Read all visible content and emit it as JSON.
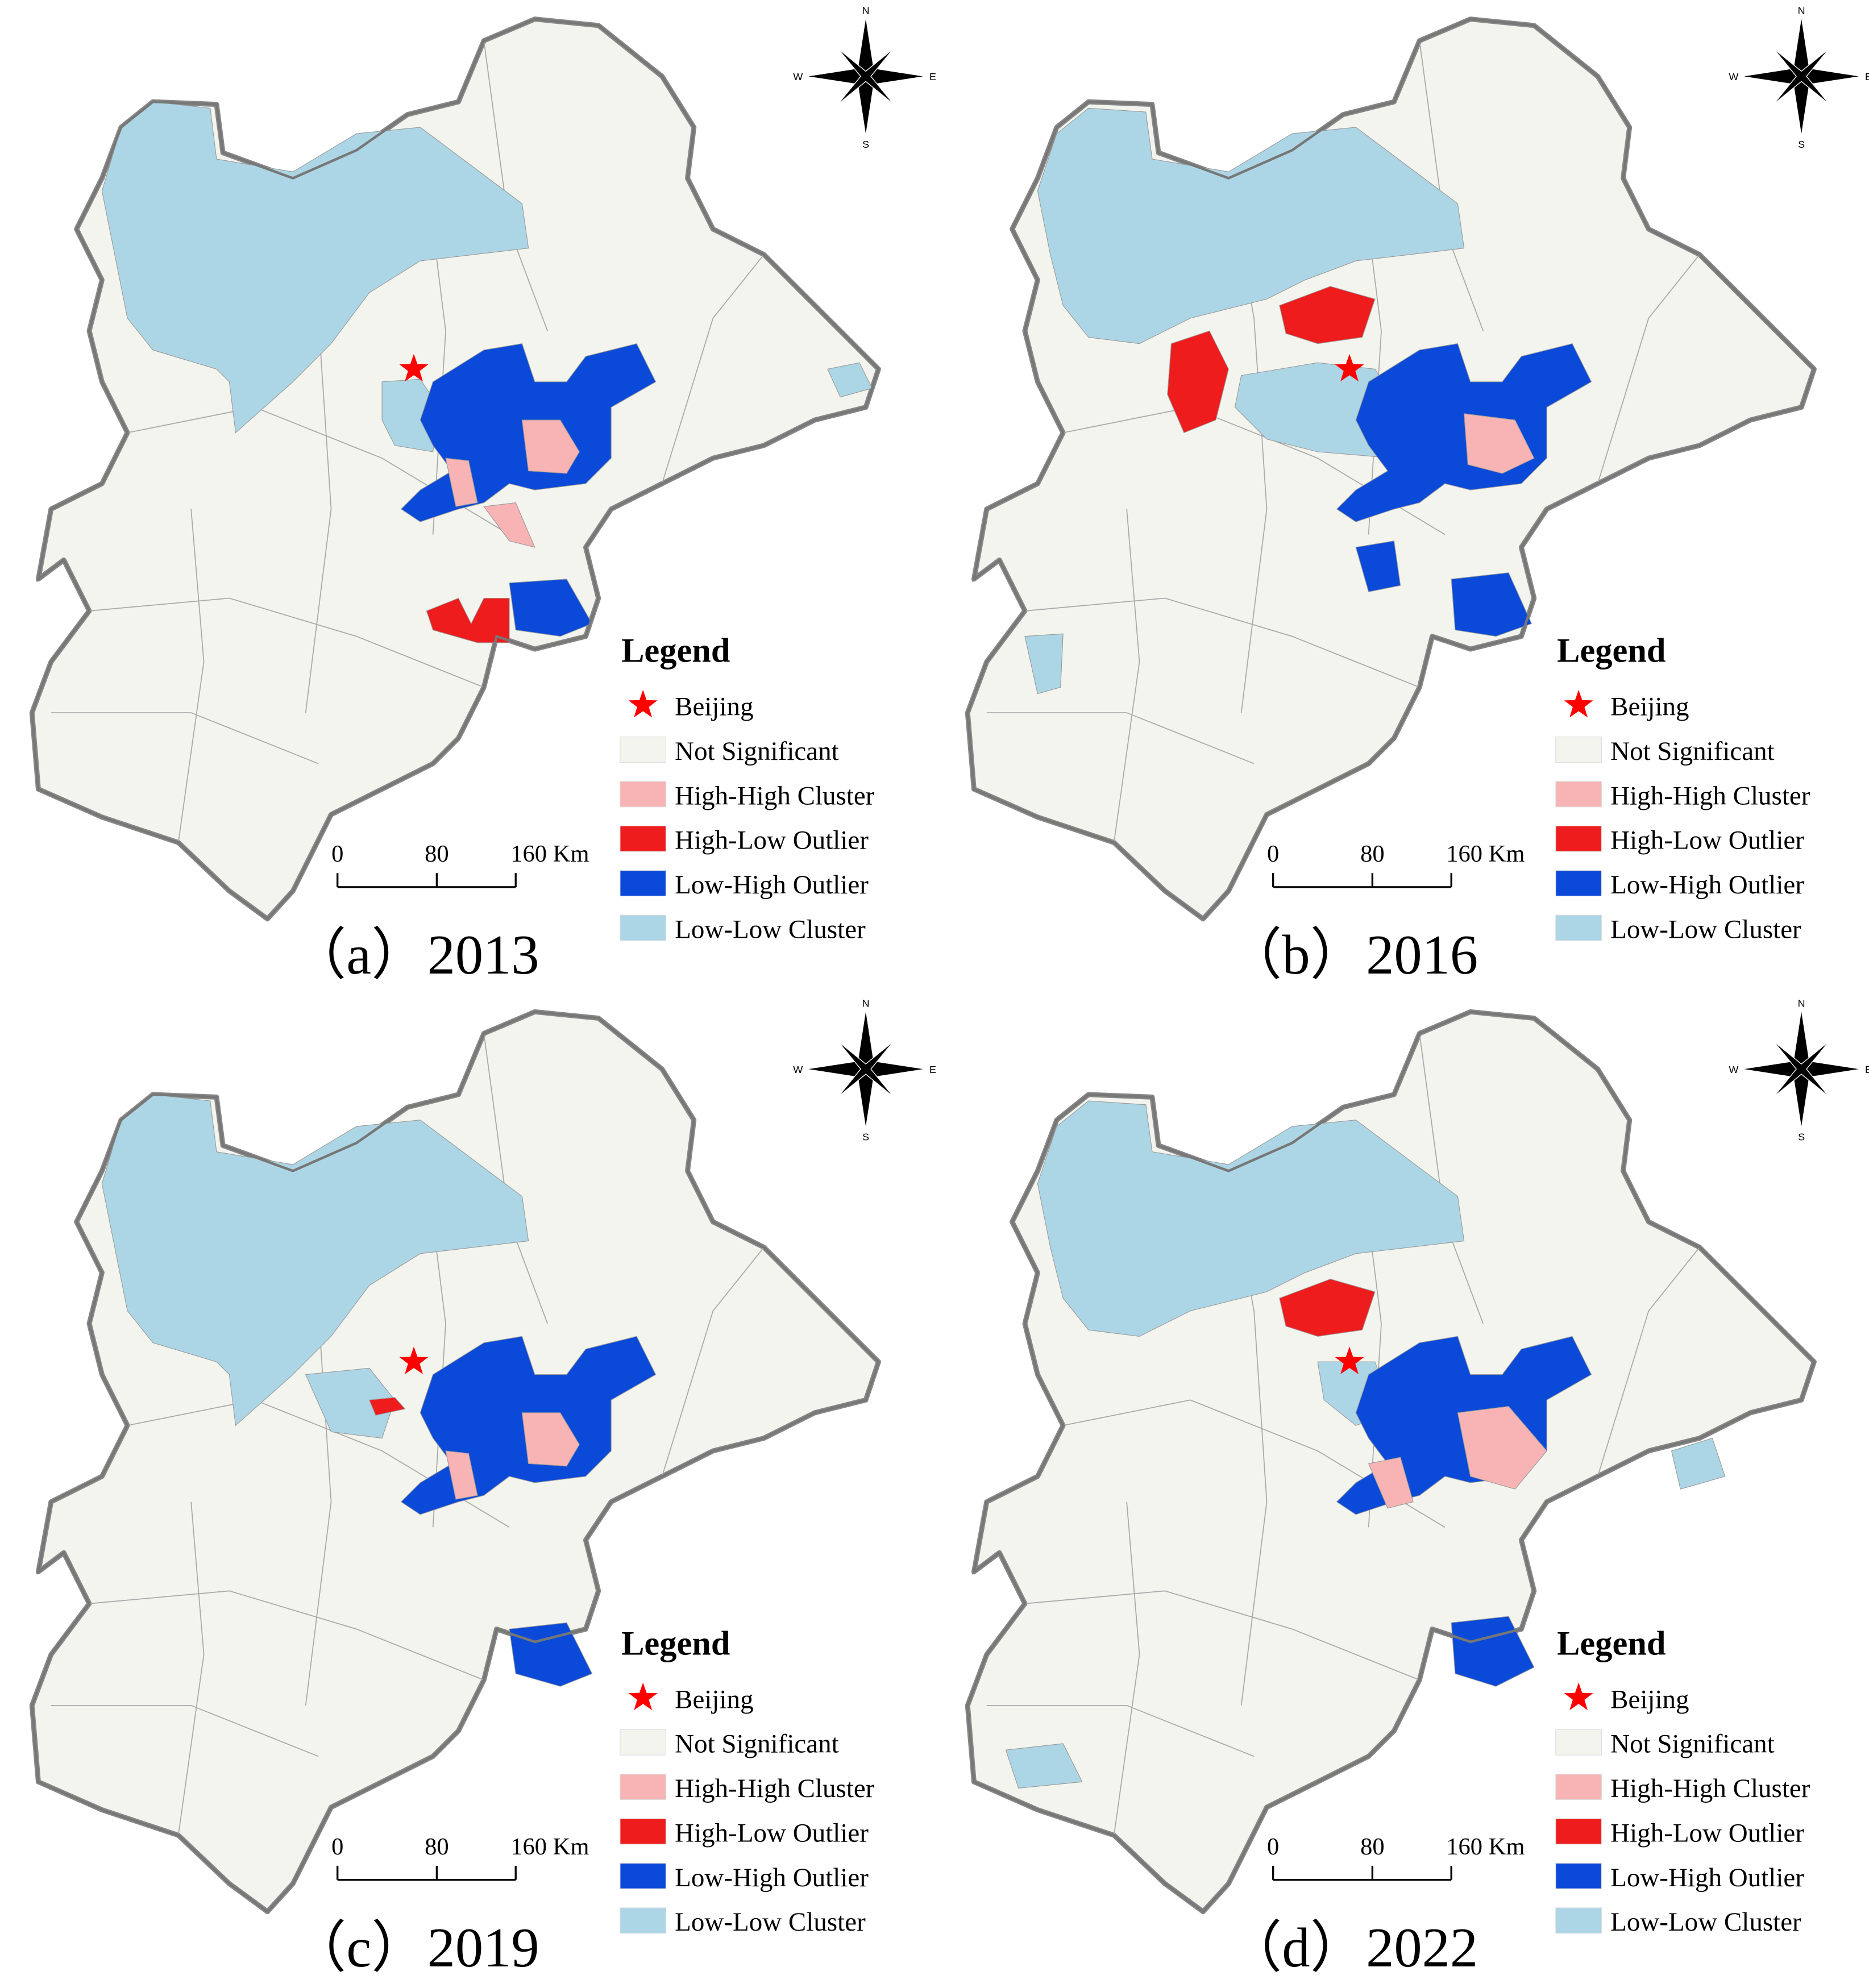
{
  "panels": [
    {
      "caption": "（a）2013",
      "compass": {
        "n": "N",
        "s": "S",
        "e": "E",
        "w": "W"
      },
      "legend": {
        "title": "Legend",
        "items": [
          {
            "label": "Beijing",
            "color": "#ff0000"
          },
          {
            "label": "Not Significant",
            "color": "#f3f4ee"
          },
          {
            "label": "High-High Cluster",
            "color": "#f8b4b4"
          },
          {
            "label": "High-Low Outlier",
            "color": "#ee1c1c"
          },
          {
            "label": "Low-High Outlier",
            "color": "#0b4ad8"
          },
          {
            "label": "Low-Low Cluster",
            "color": "#acd6e6"
          }
        ]
      },
      "scale_bar": {
        "labels": [
          "0",
          "80",
          "160 Km"
        ]
      }
    },
    {
      "caption": "（b）2016",
      "compass": {
        "n": "N",
        "s": "S",
        "e": "E",
        "w": "W"
      },
      "legend": {
        "title": "Legend",
        "items": [
          {
            "label": "Beijing",
            "color": "#ff0000"
          },
          {
            "label": "Not Significant",
            "color": "#f3f4ee"
          },
          {
            "label": "High-High Cluster",
            "color": "#f8b4b4"
          },
          {
            "label": "High-Low Outlier",
            "color": "#ee1c1c"
          },
          {
            "label": "Low-High Outlier",
            "color": "#0b4ad8"
          },
          {
            "label": "Low-Low Cluster",
            "color": "#acd6e6"
          }
        ]
      },
      "scale_bar": {
        "labels": [
          "0",
          "80",
          "160 Km"
        ]
      }
    },
    {
      "caption": "（c）2019",
      "compass": {
        "n": "N",
        "s": "S",
        "e": "E",
        "w": "W"
      },
      "legend": {
        "title": "Legend",
        "items": [
          {
            "label": "Beijing",
            "color": "#ff0000"
          },
          {
            "label": "Not Significant",
            "color": "#f3f4ee"
          },
          {
            "label": "High-High Cluster",
            "color": "#f8b4b4"
          },
          {
            "label": "High-Low Outlier",
            "color": "#ee1c1c"
          },
          {
            "label": "Low-High Outlier",
            "color": "#0b4ad8"
          },
          {
            "label": "Low-Low Cluster",
            "color": "#acd6e6"
          }
        ]
      },
      "scale_bar": {
        "labels": [
          "0",
          "80",
          "160 Km"
        ]
      }
    },
    {
      "caption": "（d）2022",
      "compass": {
        "n": "N",
        "s": "S",
        "e": "E",
        "w": "W"
      },
      "legend": {
        "title": "Legend",
        "items": [
          {
            "label": "Beijing",
            "color": "#ff0000"
          },
          {
            "label": "Not Significant",
            "color": "#f3f4ee"
          },
          {
            "label": "High-High Cluster",
            "color": "#f8b4b4"
          },
          {
            "label": "High-Low Outlier",
            "color": "#ee1c1c"
          },
          {
            "label": "Low-High Outlier",
            "color": "#0b4ad8"
          },
          {
            "label": "Low-Low Cluster",
            "color": "#acd6e6"
          }
        ]
      },
      "scale_bar": {
        "labels": [
          "0",
          "80",
          "160 Km"
        ]
      }
    }
  ]
}
